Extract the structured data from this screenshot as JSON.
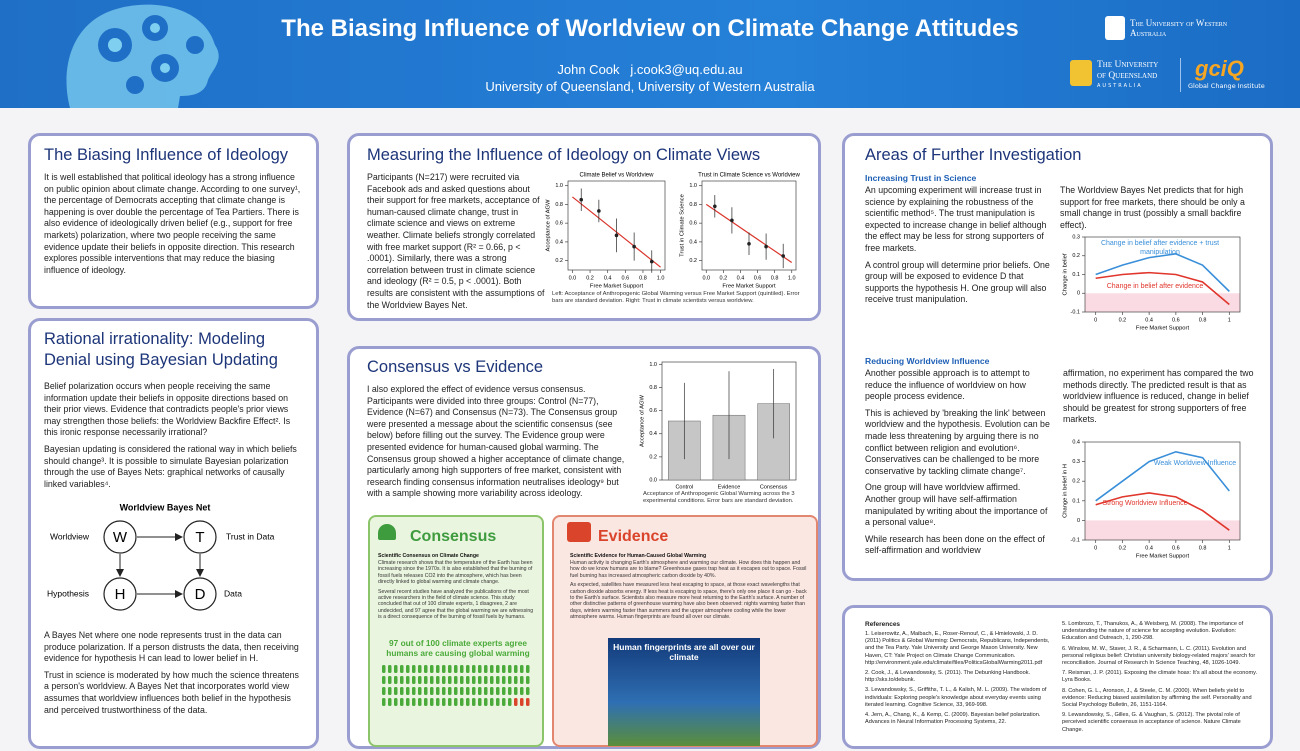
{
  "header": {
    "title": "The Biasing Influence of Worldview on Climate Change Attitudes",
    "author": "John Cook",
    "email": "j.cook3@uq.edu.au",
    "affiliation": "University of Queensland, University of Western Australia",
    "logo_uwa": "The University of Western Australia",
    "logo_uq": "The University of Queensland",
    "logo_uq_country": "Australia",
    "logo_gci": "gciQ",
    "logo_gci_name": "Global Change Institute"
  },
  "ideology": {
    "title": "The Biasing Influence of Ideology",
    "paragraphs": [
      "It is well established that political ideology has a strong influence on public opinion about climate change. According to one survey¹, the percentage of Democrats accepting that climate change is happening is over double the percentage of Tea Partiers. There is also evidence of ideologically driven belief (e.g., support for free markets) polarization, where two people receiving the same evidence update their beliefs in opposite direction. This research explores possible interventions that may reduce the biasing influence of ideology."
    ]
  },
  "rational": {
    "title": "Rational irrationality: Modeling Denial using Bayesian Updating",
    "paragraphs": [
      "Belief polarization occurs when people receiving the same information update their beliefs in opposite directions based on their prior views. Evidence that contradicts people's prior views may strengthen those beliefs: the Worldview Backfire Effect². Is this ironic response necessarily irrational?",
      "Bayesian updating is considered the rational way in which beliefs should change³. It is possible to simulate Bayesian polarization through the use of Bayes Nets: graphical networks of causally linked variables⁴."
    ],
    "diagram": {
      "title": "Worldview Bayes Net",
      "nodes": [
        {
          "letter": "W",
          "label": "Worldview"
        },
        {
          "letter": "T",
          "label": "Trust in Data"
        },
        {
          "letter": "H",
          "label": "Hypothesis"
        },
        {
          "letter": "D",
          "label": "Data"
        }
      ]
    },
    "paragraphs_after": [
      "A Bayes Net where one node represents trust in the data can produce polarization. If a person distrusts the data, then receiving evidence for hypothesis H can lead to lower belief in H.",
      "Trust in science is moderated by how much the science threatens a person's worldview. A Bayes Net that incorporates world view assumes that worldview influences both belief in the hypothesis and perceived trustworthiness of the data."
    ]
  },
  "measuring": {
    "title": "Measuring the Influence of Ideology on Climate Views",
    "paragraphs": [
      "Participants (N=217) were recruited via Facebook ads and asked questions about their support for free markets, acceptance of human-caused climate change, trust in climate science and views on extreme weather. Climate beliefs strongly correlated with free market support (R² = 0.66, p < .0001). Similarly, there was a strong correlation between trust in climate science and ideology (R² = 0.5, p < .0001). Both results are consistent with the assumptions of the Worldview Bayes Net."
    ],
    "caption": "Left: Acceptance of Anthropogenic Global Warming versus Free Market Support (quintiled). Error bars are standard deviation. Right: Trust in climate scientists versus worldview."
  },
  "consensus": {
    "title": "Consensus vs Evidence",
    "paragraphs": [
      "I also explored the effect of evidence versus consensus. Participants were divided into three groups: Control (N=77), Evidence (N=67) and Consensus (N=73). The Consensus group were presented a message about the scientific consensus (see below) before filling out the survey. The Evidence group were presented evidence for human-caused global warming. The Consensus group showed a higher acceptance of climate change, particularly among high supporters of free market, consistent with research finding consensus information neutralises ideology⁹ but with a sample showing more variability across ideology."
    ],
    "caption": "Acceptance of Anthropogenic Global Warming across the 3 experimental conditions. Error bars are standard deviation.",
    "consensus_box": {
      "title": "Consensus",
      "subtitle": "Scientific Consensus on Climate Change",
      "paragraphs": [
        "Climate research shows that the temperature of the Earth has been increasing since the 1970s. It is also established that the burning of fossil fuels releases CO2 into the atmosphere, which has been directly linked to global warming and climate change.",
        "Several recent studies have analyzed the publications of the most active researchers in the field of climate science. This study concluded that out of 100 climate experts, 1 disagrees, 2 are undecided, and 97 agree that the global warming we are witnessing is a direct consequence of the burning of fossil fuels by humans."
      ],
      "callout": "97 out of 100 climate experts agree humans are causing global warming"
    },
    "evidence_box": {
      "title": "Evidence",
      "subtitle": "Scientific Evidence for Human-Caused Global Warming",
      "paragraphs": [
        "Human activity is changing Earth's atmosphere and warming our climate. How does this happen and how do we know humans are to blame? Greenhouse gases trap heat as it escapes out to space. Fossil fuel burning has increased atmospheric carbon dioxide by 40%.",
        "As expected, satellites have measured less heat escaping to space, at those exact wavelengths that carbon dioxide absorbs energy. If less heat is escaping to space, there's only one place it can go - back to the Earth's surface. Scientists also measure more heat returning to the Earth's surface. A number of other distinctive patterns of greenhouse warming have also been observed: nights warming faster than days, winters warming faster than summers and the upper atmosphere cooling while the lower atmosphere warms. Human fingerprints are found all over our climate."
      ],
      "image_title": "Human fingerprints are all over our climate"
    }
  },
  "further": {
    "title": "Areas of Further Investigation",
    "trust": {
      "heading": "Increasing Trust in Science",
      "left": [
        "An upcoming experiment will increase trust in science by explaining the robustness of the scientific method⁵. The trust manipulation is expected to increase change in belief although the effect may be less for strong supporters of free markets.",
        "A control group will determine prior beliefs. One group will be exposed to evidence D that supports the hypothesis H. One group will also receive trust manipulation."
      ],
      "right": [
        "The Worldview Bayes Net predicts that for high support for free markets, there should be only a small change in trust (possibly a small backfire effect)."
      ]
    },
    "worldview": {
      "heading": "Reducing Worldview Influence",
      "left": [
        "Another possible approach is to attempt to reduce the influence of worldview on how people process evidence.",
        "This is achieved by 'breaking the link' between worldview and the hypothesis. Evolution can be made less threatening by arguing there is no conflict between religion and evolution⁶. Conservatives can be challenged to be more conservative by tackling climate change⁷.",
        "One group will have worldview affirmed. Another group will have self-affirmation manipulated by writing about the importance of a personal value⁸.",
        "While research has been done on the effect of self-affirmation and worldview"
      ],
      "right": [
        "affirmation, no experiment has compared the two methods directly. The predicted result is that as worldview influence is reduced, change in belief should be greatest for strong supporters of free markets."
      ]
    }
  },
  "references": {
    "title": "References",
    "left": [
      "1. Leiserowitz, A., Maibach, E., Roser-Renouf, C., & Hmielowski, J. D. (2011) Politics & Global Warming: Democrats, Republicans, Independents, and the Tea Party. Yale University and George Mason University. New Haven, CT: Yale Project on Climate Change Communication. http://environment.yale.edu/climate/files/PoliticsGlobalWarming2011.pdf",
      "2. Cook, J., & Lewandowsky, S. (2011). The Debunking Handbook. http://sks.to/debunk.",
      "3. Lewandowsky, S., Griffiths, T. L., & Kalish, M. L. (2009). The wisdom of individuals: Exploring people's knowledge about everyday events using iterated learning. Cognitive Science, 33, 969-998.",
      "4. Jern, A., Chang, K., & Kemp, C. (2009). Bayesian belief polarization. Advances in Neural Information Processing Systems, 22."
    ],
    "right": [
      "5. Lombrozo, T., Thanukos, A., & Weisberg, M. (2008). The importance of understanding the nature of science for accepting evolution. Evolution: Education and Outreach, 1, 290-298.",
      "6. Winslow, M. W., Staver, J. R., & Scharmann, L. C. (2011). Evolution and personal religious belief: Christian university biology-related majors' search for reconciliation. Journal of Research In Science Teaching, 48, 1026-1049.",
      "7. Reisman, J. P. (2011). Exposing the climate hoax: It's all about the economy. Lyra Books.",
      "8. Cohen, G. L., Aronson, J., & Steele, C. M. (2000). When beliefs yield to evidence: Reducing biased assimilation by affirming the self. Personality and Social Psychology Bulletin, 26, 1151-1164.",
      "9. Lewandowsky, S., Gilles, G. & Vaughan, S. (2012). The pivotal role of perceived scientific consensus in acceptance of science. Nature Climate Change."
    ]
  },
  "chart_data": [
    {
      "type": "errorbar",
      "title": "Climate Belief vs Worldview",
      "xlabel": "Free Market Support",
      "ylabel": "Acceptance of AGW",
      "x": [
        0.1,
        0.3,
        0.5,
        0.7,
        0.9
      ],
      "values": [
        0.85,
        0.73,
        0.47,
        0.35,
        0.19
      ],
      "errors": [
        0.12,
        0.12,
        0.18,
        0.15,
        0.12
      ],
      "color": "#222222",
      "trend": {
        "color": "#d9342b",
        "x": [
          0,
          1
        ],
        "values": [
          0.88,
          0.13
        ]
      },
      "xlim": [
        -0.05,
        1.05
      ],
      "ylim": [
        0.1,
        1.05
      ],
      "xticks": [
        {
          "value": 0,
          "label": "0.0"
        },
        0.2,
        0.4,
        0.6,
        0.8,
        {
          "value": 1,
          "label": "1.0"
        }
      ],
      "yticks": [
        0.2,
        0.4,
        0.6,
        0.8,
        {
          "value": 1,
          "label": "1.0"
        }
      ]
    },
    {
      "type": "errorbar",
      "title": "Trust in Climate Science vs Worldview",
      "xlabel": "Free Market Support",
      "ylabel": "Trust in Climate Science",
      "x": [
        0.1,
        0.3,
        0.5,
        0.7,
        0.9
      ],
      "values": [
        0.78,
        0.63,
        0.38,
        0.35,
        0.25
      ],
      "errors": [
        0.12,
        0.14,
        0.12,
        0.14,
        0.13
      ],
      "color": "#222222",
      "trend": {
        "color": "#d9342b",
        "x": [
          0,
          1
        ],
        "values": [
          0.8,
          0.18
        ]
      },
      "xlim": [
        -0.05,
        1.05
      ],
      "ylim": [
        0.1,
        1.05
      ],
      "xticks": [
        {
          "value": 0,
          "label": "0.0"
        },
        0.2,
        0.4,
        0.6,
        0.8,
        {
          "value": 1,
          "label": "1.0"
        }
      ],
      "yticks": [
        0.2,
        0.4,
        0.6,
        0.8,
        {
          "value": 1,
          "label": "1.0"
        }
      ]
    },
    {
      "type": "bar",
      "ylabel": "Acceptance of AGW",
      "categories": [
        "Control",
        "Evidence",
        "Consensus"
      ],
      "values": [
        0.51,
        0.56,
        0.66
      ],
      "errors": [
        0.33,
        0.38,
        0.3
      ],
      "color": "#c6c6c6",
      "ylim": [
        0,
        1.02
      ],
      "yticks": [
        {
          "value": 0,
          "label": "0.0"
        },
        0.2,
        0.4,
        0.6,
        0.8,
        {
          "value": 1,
          "label": "1.0"
        }
      ]
    },
    {
      "type": "line",
      "xlabel": "Free Market Support",
      "ylabel": "Change in belief",
      "x": [
        0,
        0.2,
        0.4,
        0.6,
        0.8,
        1
      ],
      "series": [
        {
          "name": "Change in belief after evidence + trust manipulation",
          "color": "#3a8fd9",
          "values": [
            0.1,
            0.15,
            0.19,
            0.21,
            0.15,
            0.01
          ]
        },
        {
          "name": "Change in belief after evidence",
          "color": "#e0362c",
          "values": [
            0.08,
            0.1,
            0.11,
            0.1,
            0.06,
            -0.06
          ]
        }
      ],
      "negative_shade": "#fadbe3",
      "xlim": [
        -0.08,
        1.08
      ],
      "ylim": [
        -0.1,
        0.3
      ],
      "xticks": [
        0,
        0.2,
        0.4,
        0.6,
        0.8,
        1
      ],
      "yticks": [
        -0.1,
        0,
        0.1,
        0.2,
        0.3
      ]
    },
    {
      "type": "line",
      "xlabel": "Free Market Support",
      "ylabel": "Change in belief in H",
      "x": [
        0,
        0.2,
        0.4,
        0.6,
        0.8,
        1
      ],
      "series": [
        {
          "name": "Weak Worldview Influence",
          "color": "#3a8fd9",
          "values": [
            0.1,
            0.2,
            0.3,
            0.35,
            0.32,
            0.15
          ]
        },
        {
          "name": "Strong Worldview Influence",
          "color": "#e0362c",
          "values": [
            0.08,
            0.12,
            0.14,
            0.12,
            0.05,
            -0.05
          ]
        }
      ],
      "negative_shade": "#fadbe3",
      "xlim": [
        -0.08,
        1.08
      ],
      "ylim": [
        -0.1,
        0.4
      ],
      "xticks": [
        0,
        0.2,
        0.4,
        0.6,
        0.8,
        1
      ],
      "yticks": [
        -0.1,
        0,
        0.1,
        0.2,
        0.3,
        0.4
      ]
    }
  ]
}
